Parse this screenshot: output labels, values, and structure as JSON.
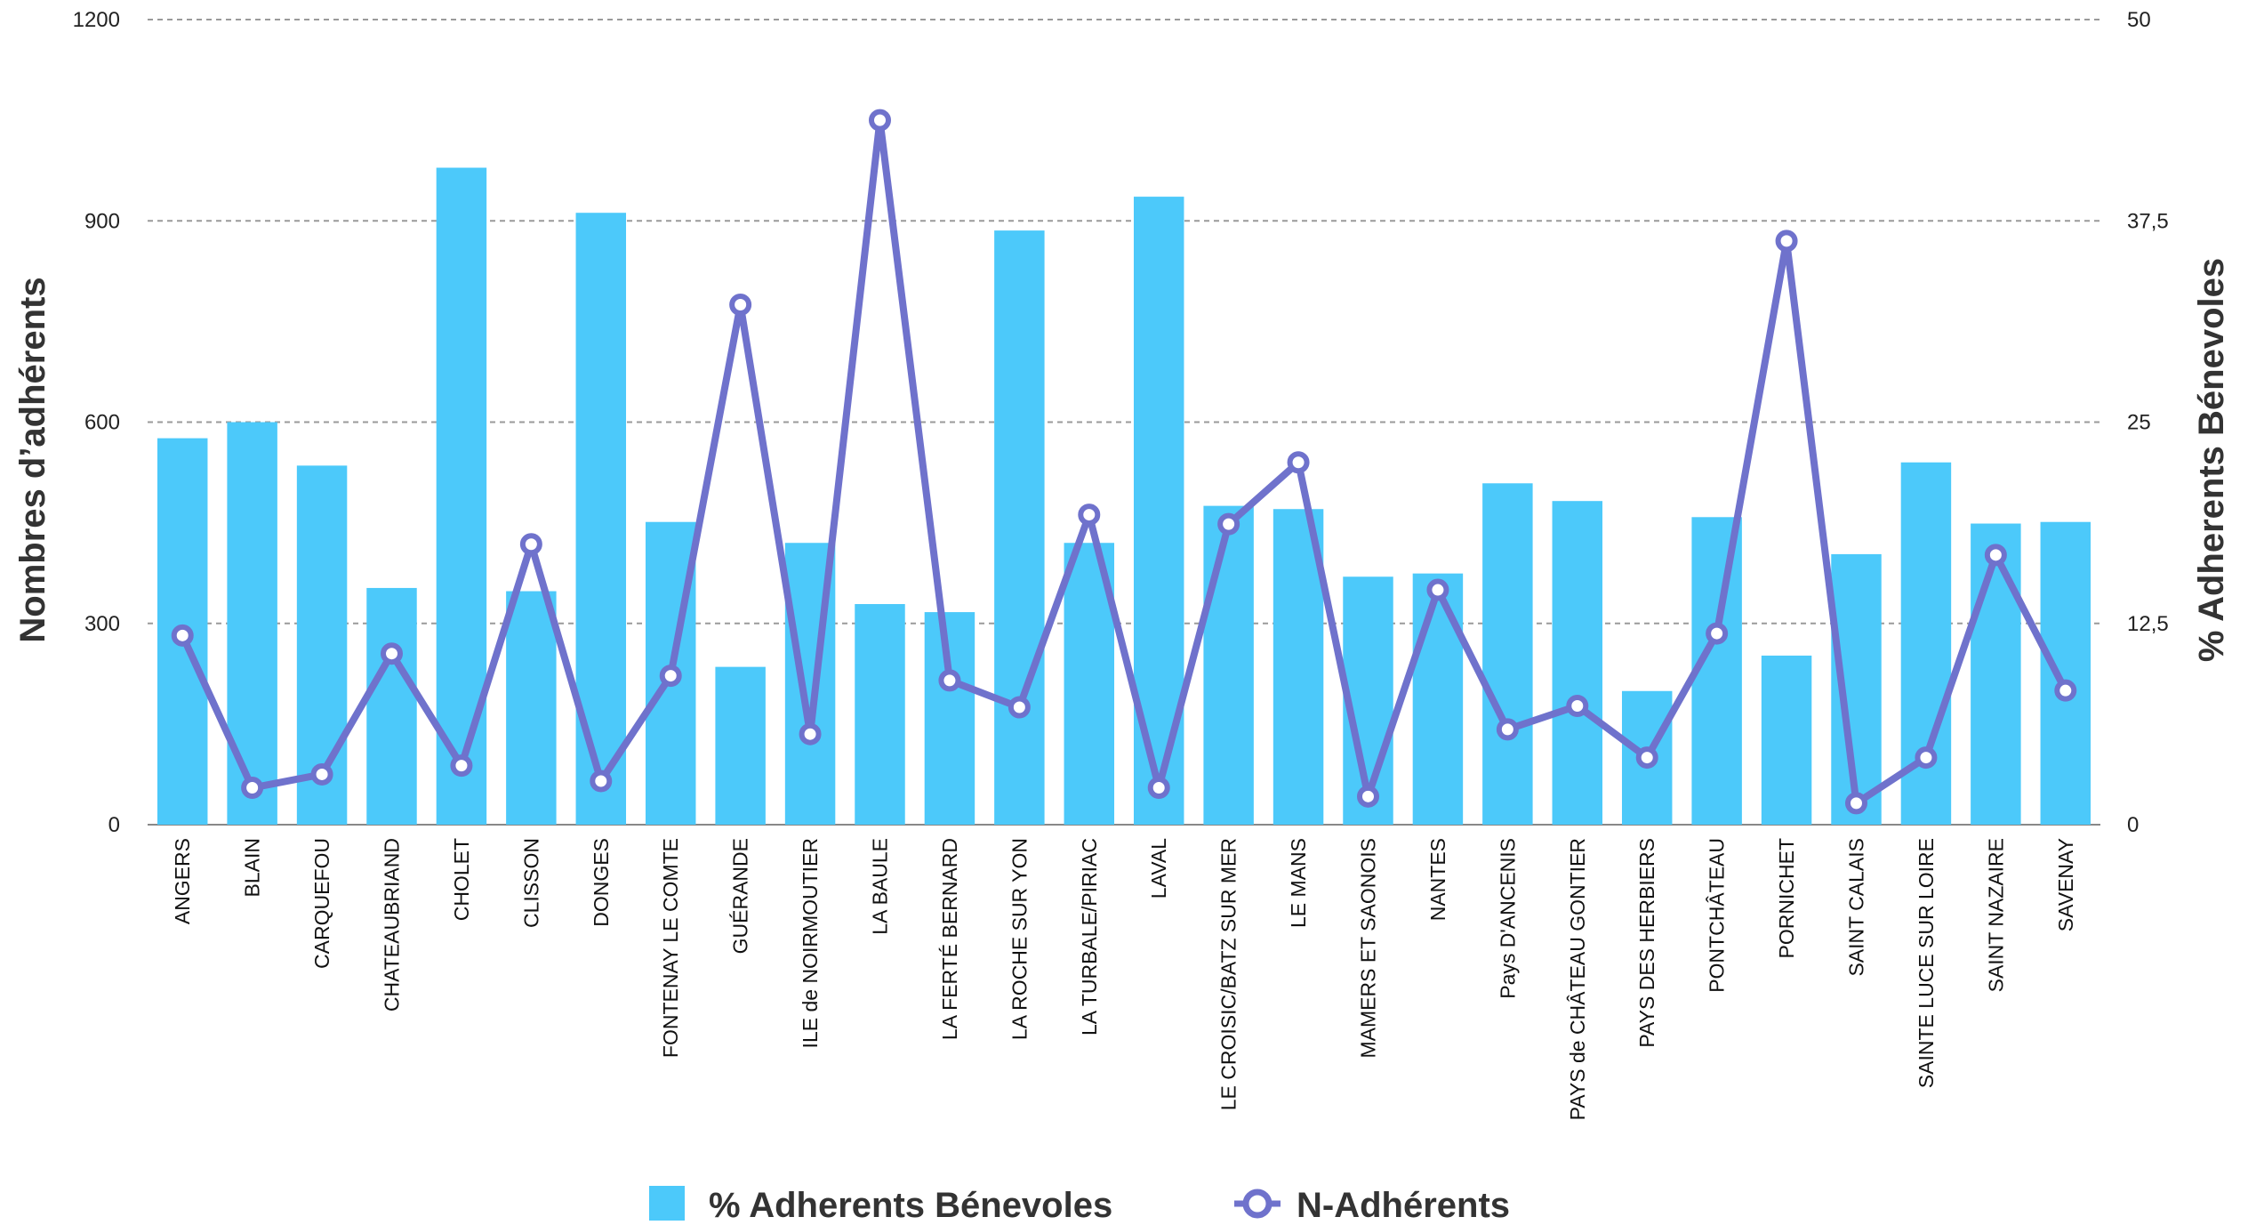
{
  "chart_data": {
    "type": "bar",
    "categories": [
      "ANGERS",
      "BLAIN",
      "CARQUEFOU",
      "CHATEAUBRIAND",
      "CHOLET",
      "CLISSON",
      "DONGES",
      "FONTENAY LE COMTE",
      "GUÉRANDE",
      "ILE de NOIRMOUTIER",
      "LA BAULE",
      "LA FERTÉ BERNARD",
      "LA ROCHE SUR YON",
      "LA TURBALE/PIRIAC",
      "LAVAL",
      "LE CROISIC/BATZ SUR MER",
      "LE MANS",
      "MAMERS ET SAONOIS",
      "NANTES",
      "Pays D'ANCENIS",
      "PAYS de CHÂTEAU GONTIER",
      "PAYS DES HERBIERS",
      "PONTCHÂTEAU",
      "PORNICHET",
      "SAINT CALAIS",
      "SAINTE LUCE SUR LOIRE",
      "SAINT NAZAIRE",
      "SAVENAY"
    ],
    "series": [
      {
        "name": "% Adherents Bénevoles",
        "kind": "bar",
        "axis": "right",
        "color": "#4cc9fa",
        "values": [
          24,
          25,
          22.3,
          14.7,
          40.8,
          14.5,
          38,
          18.8,
          9.8,
          17.5,
          13.7,
          13.2,
          36.9,
          17.5,
          39,
          19.8,
          19.6,
          15.4,
          15.6,
          21.2,
          20.1,
          8.3,
          19.1,
          10.5,
          16.8,
          22.5,
          18.7,
          18.8
        ]
      },
      {
        "name": "N-Adhérents",
        "kind": "line",
        "axis": "left",
        "color": "#6f72cc",
        "values": [
          282,
          55,
          75,
          255,
          88,
          418,
          65,
          222,
          775,
          135,
          1050,
          215,
          175,
          462,
          55,
          448,
          540,
          42,
          350,
          142,
          177,
          100,
          285,
          870,
          32,
          100,
          402,
          200
        ]
      }
    ],
    "ylabel": "Nombres d’adhérents",
    "ylim": [
      0,
      1200
    ],
    "yticks": [
      "0",
      "300",
      "600",
      "900",
      "1200"
    ],
    "ylabel_right": "% Adherents Bénevoles",
    "ylim_right": [
      0,
      50
    ],
    "yticks_right": [
      "0",
      "12,5",
      "25",
      "37,5",
      "50"
    ],
    "grid": true,
    "legend_position": "bottom"
  }
}
